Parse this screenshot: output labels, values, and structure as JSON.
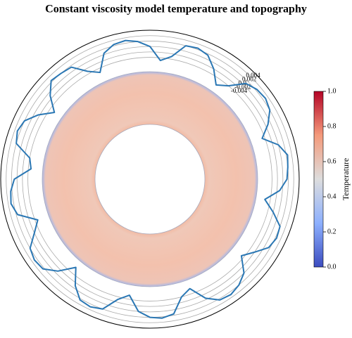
{
  "chart_data": {
    "type": "polar",
    "title": "Constant viscosity model temperature and topography",
    "x": [
      0,
      5,
      10,
      15,
      20,
      25,
      30,
      35,
      40,
      45,
      50,
      55,
      60,
      65,
      70,
      75,
      80,
      85,
      90,
      95,
      100,
      105,
      110,
      115,
      120,
      125,
      130,
      135,
      140,
      145,
      150,
      155,
      160,
      165,
      170,
      175,
      180,
      185,
      190,
      195,
      200,
      205,
      210,
      215,
      220,
      225,
      230,
      235,
      240,
      245,
      250,
      255,
      260,
      265,
      270,
      275,
      280,
      285,
      290,
      295,
      300,
      305,
      310,
      315,
      320,
      325,
      330,
      335,
      340,
      345,
      350,
      355
    ],
    "series": [
      {
        "color": "#2a77b4",
        "values": [
          0.0015,
          0.002,
          0.0025,
          0.0,
          -0.005,
          -0.001,
          0.002,
          0.003,
          0.0025,
          0.001,
          -0.004,
          -0.0065,
          -0.002,
          0.0015,
          0.0025,
          0.002,
          -0.003,
          -0.005,
          0.0,
          0.002,
          0.003,
          0.0025,
          0.0005,
          -0.0055,
          -0.003,
          0.0015,
          0.002,
          0.0025,
          -0.001,
          -0.006,
          -0.0015,
          0.002,
          0.003,
          0.002,
          -0.004,
          -0.005,
          0.001,
          0.0025,
          0.003,
          0.0015,
          -0.005,
          -0.002,
          0.002,
          0.003,
          0.0025,
          -0.001,
          -0.0065,
          -0.001,
          0.0025,
          0.003,
          0.002,
          -0.003,
          -0.0055,
          0.0,
          0.002,
          0.0025,
          0.0015,
          -0.004,
          -0.006,
          -0.0005,
          0.0025,
          0.003,
          0.002,
          0.0,
          -0.005,
          -0.002,
          0.0015,
          0.0025,
          0.002,
          -0.002,
          -0.006,
          -0.001
        ]
      }
    ],
    "ylim": [
      -0.008,
      0.006
    ],
    "yticks": [
      {
        "value": -0.004,
        "label": "-0.004"
      },
      {
        "value": -0.002,
        "label": "-0.002"
      },
      {
        "value": 0,
        "label": "0.0"
      },
      0.002,
      0.004
    ],
    "grid": true,
    "colorbar": {
      "label": "Temperature",
      "lim": [
        0,
        1
      ],
      "ticks": [
        {
          "value": 0,
          "label": "0.0"
        },
        0.2,
        0.4,
        0.6,
        0.8,
        {
          "value": 1,
          "label": "1.0"
        }
      ]
    }
  }
}
